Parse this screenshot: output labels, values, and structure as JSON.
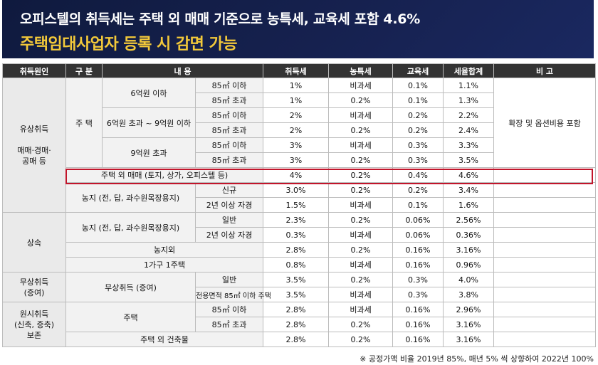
{
  "banner": {
    "line1": "오피스텔의 취득세는 주택 외 매매 기준으로 농특세, 교육세 포함 4.6%",
    "line2": "주택임대사업자 등록 시 감면 가능"
  },
  "table": {
    "headers": {
      "cause": "취득원인",
      "class": "구  분",
      "content": "내       용",
      "acq": "취득세",
      "farm": "농특세",
      "edu": "교육세",
      "total": "세율합계",
      "note": "비    고"
    },
    "paid": {
      "label_1": "유상취득",
      "label_2": "매매·경매·",
      "label_3": "공매 등",
      "house": "주  택",
      "note": "확장 및 옵션비용 포함",
      "r1": {
        "price": "6억원 이하",
        "area": "85㎡ 이하",
        "acq": "1%",
        "farm": "비과세",
        "edu": "0.1%",
        "total": "1.1%"
      },
      "r2": {
        "area": "85㎡ 초과",
        "acq": "1%",
        "farm": "0.2%",
        "edu": "0.1%",
        "total": "1.3%"
      },
      "r3": {
        "price": "6억원 초과 ~ 9억원 이하",
        "area": "85㎡ 이하",
        "acq": "2%",
        "farm": "비과세",
        "edu": "0.2%",
        "total": "2.2%"
      },
      "r4": {
        "area": "85㎡ 초과",
        "acq": "2%",
        "farm": "0.2%",
        "edu": "0.2%",
        "total": "2.4%"
      },
      "r5": {
        "price": "9억원 초과",
        "area": "85㎡ 이하",
        "acq": "3%",
        "farm": "비과세",
        "edu": "0.3%",
        "total": "3.3%"
      },
      "r6": {
        "area": "85㎡ 초과",
        "acq": "3%",
        "farm": "0.2%",
        "edu": "0.3%",
        "total": "3.5%"
      },
      "r7": {
        "label": "주택 외 매매 (토지, 상가, 오피스텔 등)",
        "acq": "4%",
        "farm": "0.2%",
        "edu": "0.4%",
        "total": "4.6%"
      },
      "farmland": "농지 (전, 답, 과수원목장용지)",
      "r8": {
        "sub": "신규",
        "acq": "3.0%",
        "farm": "0.2%",
        "edu": "0.2%",
        "total": "3.4%"
      },
      "r9": {
        "sub": "2년 이상 자경",
        "acq": "1.5%",
        "farm": "비과세",
        "edu": "0.1%",
        "total": "1.6%"
      }
    },
    "inherit": {
      "label": "상속",
      "farmland": "농지 (전, 답, 과수원목장용지)",
      "r1": {
        "sub": "일반",
        "acq": "2.3%",
        "farm": "0.2%",
        "edu": "0.06%",
        "total": "2.56%"
      },
      "r2": {
        "sub": "2년 이상 자경",
        "acq": "0.3%",
        "farm": "비과세",
        "edu": "0.06%",
        "total": "0.36%"
      },
      "r3": {
        "label": "농지외",
        "acq": "2.8%",
        "farm": "0.2%",
        "edu": "0.16%",
        "total": "3.16%"
      },
      "r4": {
        "label": "1가구 1주택",
        "acq": "0.8%",
        "farm": "비과세",
        "edu": "0.16%",
        "total": "0.96%"
      }
    },
    "gift": {
      "label_1": "무상취득",
      "label_2": "(증여)",
      "sub": "무상취득 (증여)",
      "r1": {
        "sub": "일반",
        "acq": "3.5%",
        "farm": "0.2%",
        "edu": "0.3%",
        "total": "4.0%"
      },
      "r2": {
        "sub": "전용면적 85㎡ 이하 주택",
        "acq": "3.5%",
        "farm": "비과세",
        "edu": "0.3%",
        "total": "3.8%"
      }
    },
    "original": {
      "label_1": "원시취득",
      "label_2": "(신축, 증축)",
      "label_3": "보존",
      "house": "주택",
      "r1": {
        "sub": "85㎡ 이하",
        "acq": "2.8%",
        "farm": "비과세",
        "edu": "0.16%",
        "total": "2.96%"
      },
      "r2": {
        "sub": "85㎡ 초과",
        "acq": "2.8%",
        "farm": "0.2%",
        "edu": "0.16%",
        "total": "3.16%"
      },
      "r3": {
        "label": "주택 외 건축물",
        "acq": "2.8%",
        "farm": "0.2%",
        "edu": "0.16%",
        "total": "3.16%"
      }
    }
  },
  "footnote": "※ 공정가액 비율 2019년 85%, 매년 5% 씩 상향하여 2022년 100%",
  "colors": {
    "banner": "#16214f",
    "highlight_text": "#f3c93a",
    "highlight_border": "#c2152b",
    "header": "#333333"
  }
}
